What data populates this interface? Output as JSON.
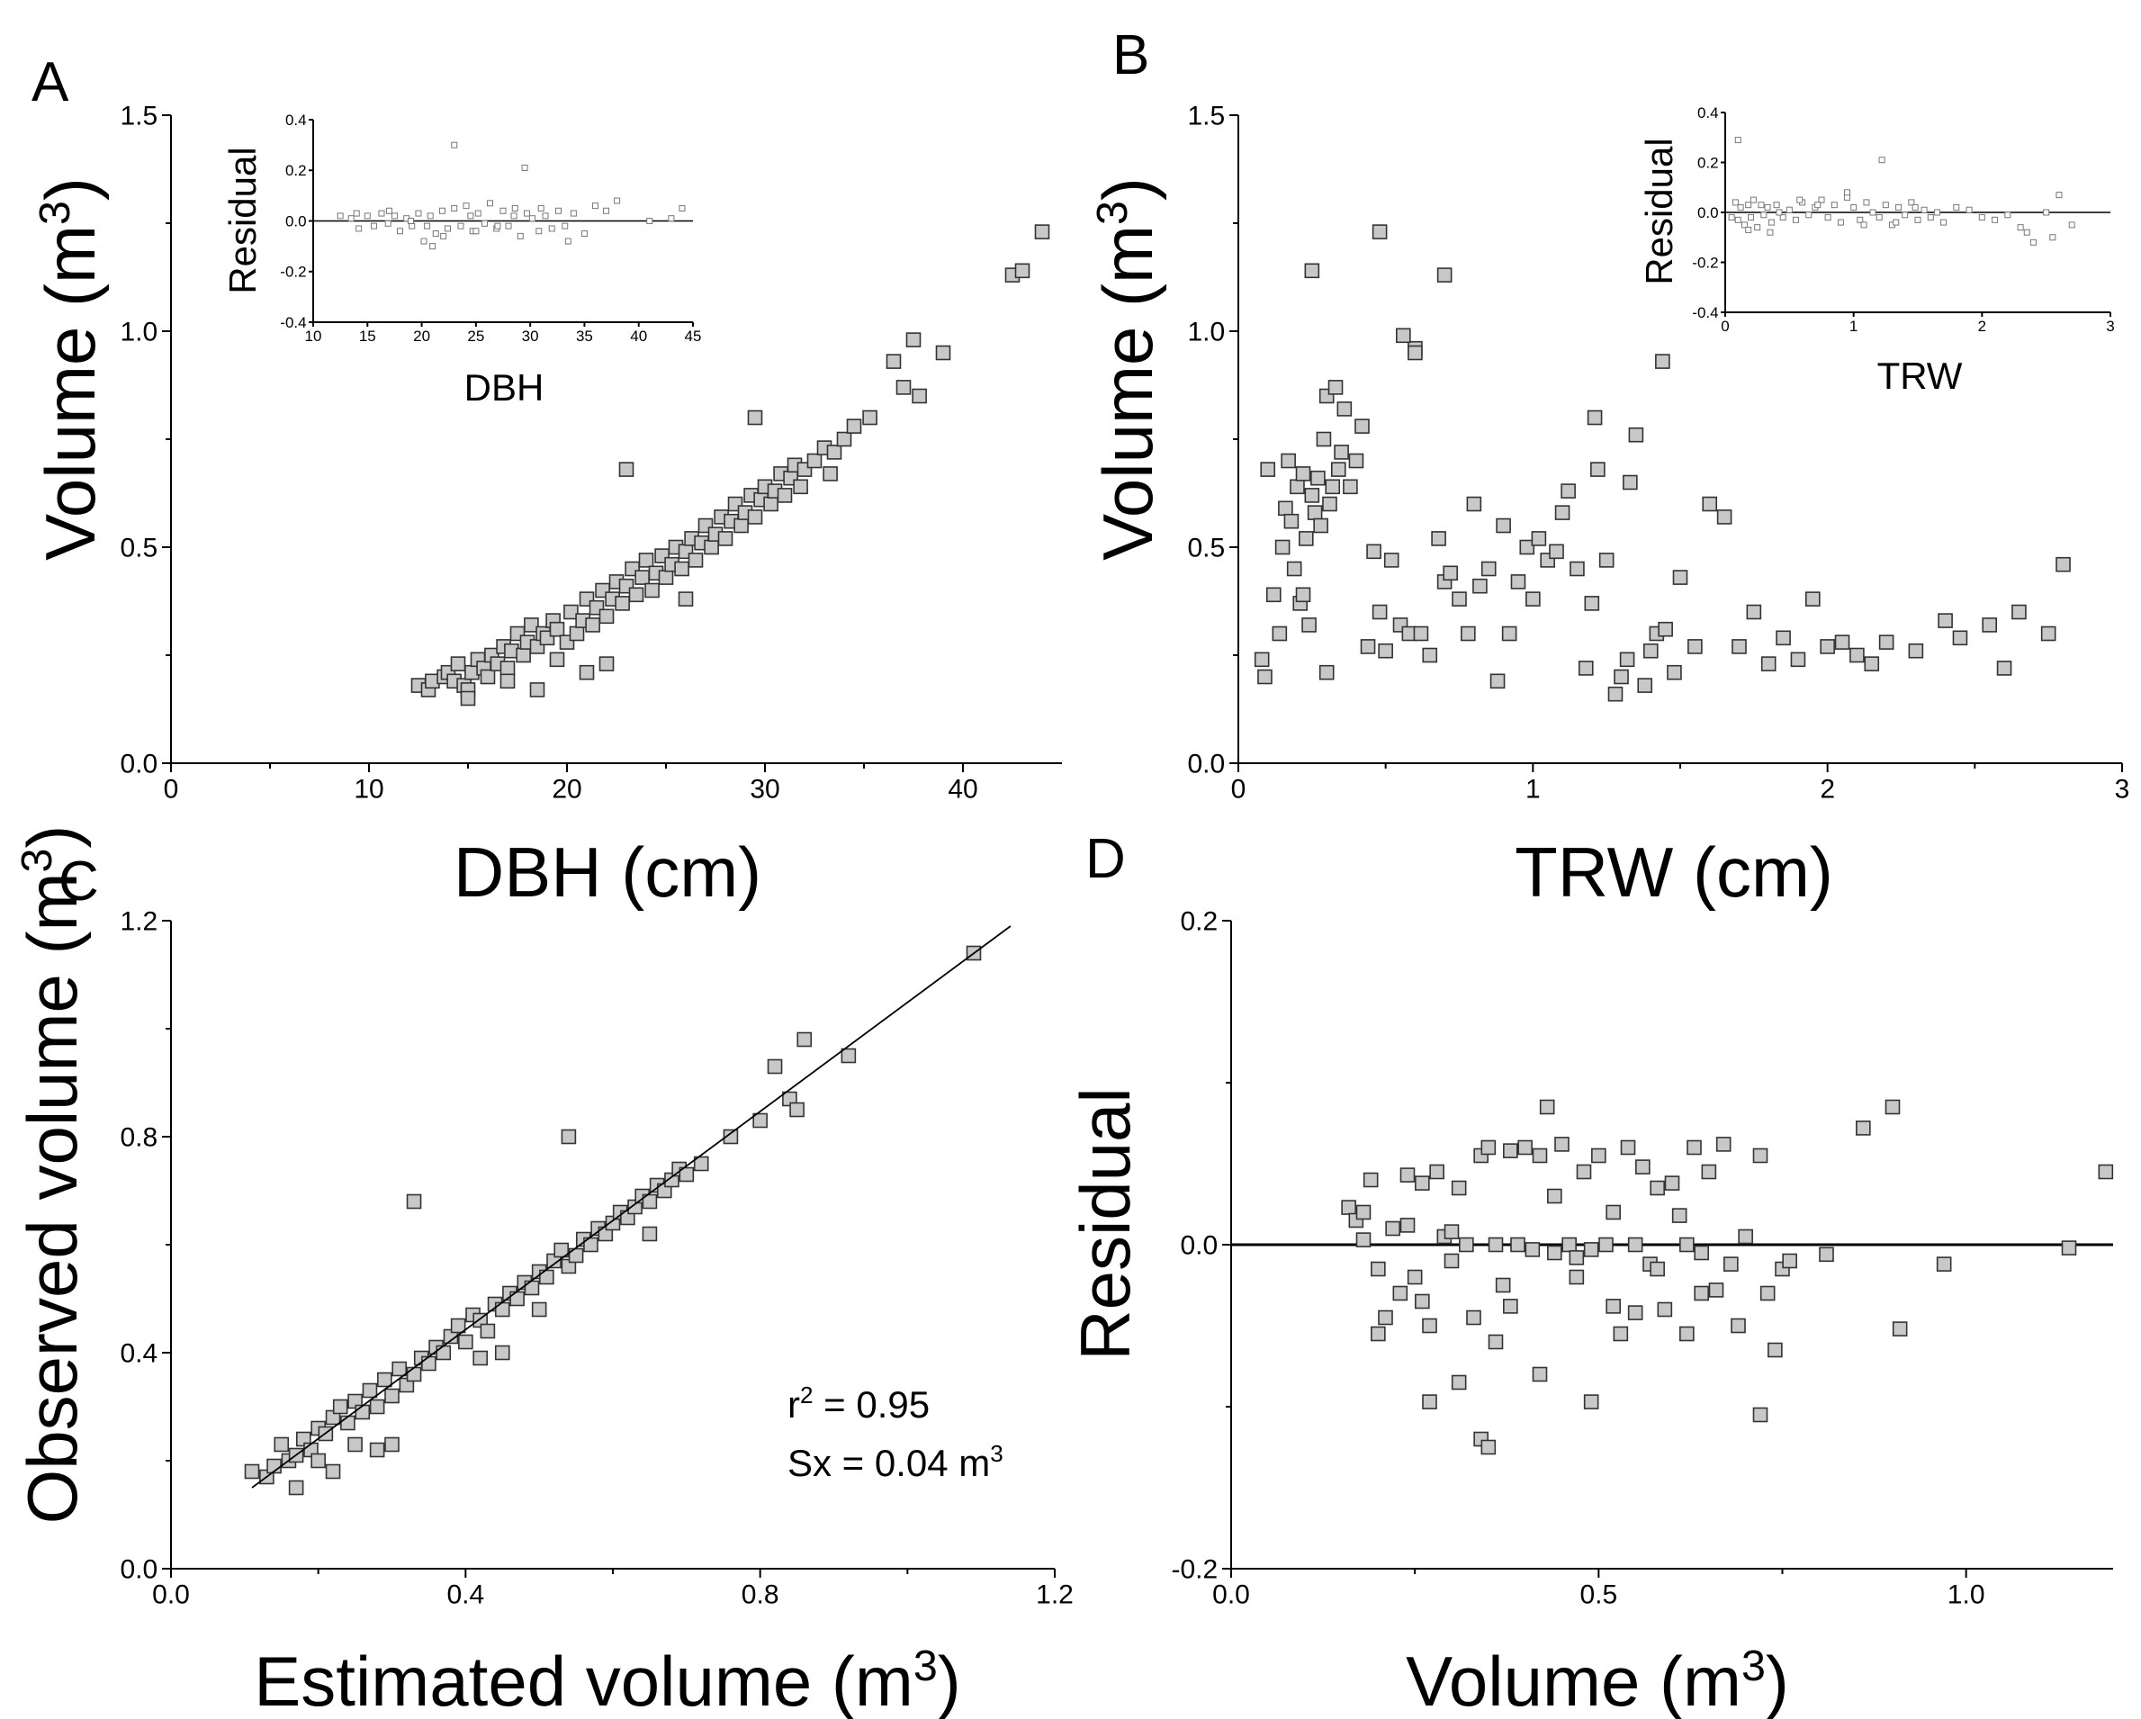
{
  "figure": {
    "panels": [
      {
        "letter": "A",
        "xlabel": "DBH (cm)",
        "ylabel": "Volume (m",
        "ylabel_sup": "3",
        "ylabel_end": ")"
      },
      {
        "letter": "B",
        "xlabel": "TRW (cm)",
        "ylabel": "Volume (m",
        "ylabel_sup": "3",
        "ylabel_end": ")"
      },
      {
        "letter": "C",
        "xlabel": "Estimated volume (m",
        "xlabel_sup": "3",
        "xlabel_end": ")",
        "ylabel": "Observed volume (m",
        "ylabel_sup": "3",
        "ylabel_end": ")"
      },
      {
        "letter": "D",
        "xlabel": "Volume (m",
        "xlabel_sup": "3",
        "xlabel_end": ")",
        "ylabel": "Residual"
      }
    ],
    "insets": [
      {
        "panel": "A",
        "xlabel": "DBH",
        "ylabel": "Residual"
      },
      {
        "panel": "B",
        "xlabel": "TRW",
        "ylabel": "Residual"
      }
    ],
    "annotations": {
      "r2_prefix": "r",
      "r2_sup": "2",
      "r2_suffix": " = 0.95",
      "sx_prefix": "Sx = 0.04 m",
      "sx_sup": "3"
    }
  },
  "chart_data": [
    {
      "id": "A",
      "type": "scatter",
      "title": "",
      "xlabel": "DBH (cm)",
      "ylabel": "Volume (m3)",
      "xlim": [
        0,
        45
      ],
      "ylim": [
        0,
        1.5
      ],
      "xticks": [
        "0",
        "10",
        "20",
        "30",
        "40"
      ],
      "yticks": [
        "0.0",
        "0.5",
        "1.0",
        "1.5"
      ],
      "xtick_values": [
        0,
        10,
        20,
        30,
        40
      ],
      "ytick_values": [
        0,
        0.5,
        1.0,
        1.5
      ],
      "point_color": "#c8c8c8",
      "edge_color": "#333333",
      "x": [
        12.5,
        13.0,
        13.2,
        13.8,
        14.0,
        14.3,
        14.5,
        14.8,
        15.0,
        15.2,
        15.5,
        15.8,
        16.0,
        16.2,
        16.5,
        16.8,
        17.0,
        17.2,
        17.5,
        17.8,
        18.0,
        18.2,
        18.5,
        18.8,
        19.0,
        19.3,
        19.5,
        20.0,
        20.2,
        20.5,
        20.8,
        21.0,
        21.3,
        21.5,
        21.8,
        22.0,
        22.3,
        22.5,
        22.8,
        23.0,
        23.3,
        23.5,
        23.8,
        24.0,
        24.3,
        24.5,
        24.8,
        25.0,
        25.3,
        25.5,
        25.8,
        26.0,
        26.3,
        26.5,
        26.8,
        27.0,
        27.3,
        27.5,
        27.8,
        28.0,
        28.3,
        28.5,
        28.8,
        29.0,
        29.3,
        29.5,
        29.8,
        30.0,
        30.3,
        30.5,
        30.8,
        31.0,
        31.3,
        31.5,
        31.8,
        32.0,
        32.5,
        33.0,
        33.3,
        33.5,
        34.0,
        34.5,
        35.3,
        36.5,
        37.0,
        37.5,
        37.8,
        39.0,
        42.5,
        43.0,
        44.0,
        23.0,
        29.5,
        19.5,
        22.0,
        21.0,
        26.0,
        18.5,
        17.0,
        15.0
      ],
      "y": [
        0.18,
        0.17,
        0.19,
        0.2,
        0.21,
        0.19,
        0.23,
        0.18,
        0.17,
        0.21,
        0.24,
        0.22,
        0.2,
        0.25,
        0.23,
        0.27,
        0.22,
        0.26,
        0.3,
        0.25,
        0.28,
        0.32,
        0.27,
        0.3,
        0.29,
        0.33,
        0.31,
        0.28,
        0.35,
        0.3,
        0.33,
        0.38,
        0.32,
        0.36,
        0.4,
        0.34,
        0.38,
        0.42,
        0.37,
        0.41,
        0.45,
        0.39,
        0.43,
        0.47,
        0.4,
        0.44,
        0.48,
        0.43,
        0.46,
        0.5,
        0.45,
        0.49,
        0.52,
        0.47,
        0.51,
        0.55,
        0.5,
        0.53,
        0.57,
        0.52,
        0.56,
        0.6,
        0.55,
        0.58,
        0.62,
        0.57,
        0.61,
        0.64,
        0.6,
        0.63,
        0.67,
        0.62,
        0.66,
        0.69,
        0.64,
        0.68,
        0.7,
        0.73,
        0.67,
        0.72,
        0.75,
        0.78,
        0.8,
        0.93,
        0.87,
        0.98,
        0.85,
        0.95,
        1.13,
        1.14,
        1.23,
        0.68,
        0.8,
        0.24,
        0.23,
        0.21,
        0.38,
        0.17,
        0.19,
        0.15
      ]
    },
    {
      "id": "A-inset",
      "type": "scatter",
      "xlabel": "DBH",
      "ylabel": "Residual",
      "xlim": [
        10,
        45
      ],
      "ylim": [
        -0.4,
        0.4
      ],
      "xticks": [
        "10",
        "15",
        "20",
        "25",
        "30",
        "35",
        "40",
        "45"
      ],
      "yticks": [
        "-0.4",
        "-0.2",
        "0.0",
        "0.2",
        "0.4"
      ],
      "xtick_values": [
        10,
        15,
        20,
        25,
        30,
        35,
        40,
        45
      ],
      "ytick_values": [
        -0.4,
        -0.2,
        0.0,
        0.2,
        0.4
      ],
      "reference_line": 0,
      "x": [
        12.5,
        13.5,
        14.2,
        15.0,
        15.6,
        16.3,
        16.9,
        17.5,
        18.0,
        18.6,
        19.1,
        19.7,
        20.2,
        20.8,
        21.3,
        21.9,
        22.4,
        23.0,
        23.6,
        24.1,
        24.7,
        25.2,
        25.8,
        26.3,
        26.9,
        27.5,
        28.0,
        28.6,
        29.1,
        29.7,
        30.2,
        30.8,
        31.4,
        32.0,
        32.6,
        33.2,
        34.0,
        35.0,
        36.0,
        37.0,
        38.0,
        41.0,
        43.0,
        44.0,
        23.0,
        29.5,
        14.0,
        17.0,
        20.5,
        22.0,
        24.5,
        27.0,
        31.0,
        33.5,
        19.0,
        25.0,
        28.5,
        21.0
      ],
      "y": [
        0.02,
        0.01,
        -0.03,
        0.02,
        -0.02,
        0.03,
        -0.01,
        0.02,
        -0.04,
        0.01,
        -0.02,
        0.03,
        -0.08,
        0.02,
        -0.05,
        0.04,
        -0.03,
        0.05,
        -0.02,
        0.06,
        -0.04,
        0.03,
        -0.01,
        0.07,
        -0.03,
        0.04,
        -0.02,
        0.05,
        -0.06,
        0.03,
        0.01,
        -0.04,
        0.02,
        -0.03,
        0.04,
        -0.02,
        0.03,
        -0.05,
        0.06,
        0.04,
        0.08,
        0.0,
        0.01,
        0.05,
        0.3,
        0.21,
        0.03,
        0.04,
        -0.02,
        -0.06,
        0.02,
        -0.02,
        0.05,
        -0.08,
        0.0,
        -0.04,
        0.02,
        -0.1
      ]
    },
    {
      "id": "B",
      "type": "scatter",
      "xlabel": "TRW (cm)",
      "ylabel": "Volume (m3)",
      "xlim": [
        0,
        3
      ],
      "ylim": [
        0,
        1.5
      ],
      "xticks": [
        "0",
        "1",
        "2",
        "3"
      ],
      "yticks": [
        "0.0",
        "0.5",
        "1.0",
        "1.5"
      ],
      "xtick_values": [
        0,
        1,
        2,
        3
      ],
      "ytick_values": [
        0,
        0.5,
        1.0,
        1.5
      ],
      "point_color": "#c8c8c8",
      "edge_color": "#333333",
      "x": [
        0.08,
        0.09,
        0.1,
        0.12,
        0.14,
        0.15,
        0.16,
        0.17,
        0.18,
        0.19,
        0.2,
        0.21,
        0.22,
        0.23,
        0.24,
        0.25,
        0.26,
        0.27,
        0.28,
        0.29,
        0.3,
        0.31,
        0.32,
        0.33,
        0.34,
        0.35,
        0.36,
        0.38,
        0.4,
        0.42,
        0.44,
        0.46,
        0.48,
        0.5,
        0.52,
        0.55,
        0.58,
        0.6,
        0.62,
        0.65,
        0.68,
        0.7,
        0.72,
        0.75,
        0.78,
        0.8,
        0.82,
        0.85,
        0.88,
        0.9,
        0.92,
        0.95,
        0.98,
        1.0,
        1.02,
        1.05,
        1.08,
        1.1,
        1.12,
        1.15,
        1.18,
        1.2,
        1.22,
        1.25,
        1.28,
        1.3,
        1.32,
        1.35,
        1.38,
        1.4,
        1.42,
        1.45,
        1.48,
        1.5,
        1.55,
        1.6,
        1.65,
        1.7,
        1.75,
        1.8,
        1.85,
        1.9,
        1.95,
        2.0,
        2.05,
        2.1,
        2.15,
        2.2,
        2.3,
        2.4,
        2.45,
        2.55,
        2.6,
        2.65,
        2.75,
        2.8,
        0.25,
        0.48,
        0.7,
        0.56,
        0.6,
        1.44,
        1.21,
        1.33,
        0.3,
        0.22
      ],
      "y": [
        0.24,
        0.2,
        0.68,
        0.39,
        0.3,
        0.5,
        0.59,
        0.7,
        0.56,
        0.45,
        0.64,
        0.37,
        0.67,
        0.52,
        0.32,
        0.62,
        0.58,
        0.66,
        0.55,
        0.75,
        0.85,
        0.6,
        0.64,
        0.87,
        0.68,
        0.72,
        0.82,
        0.64,
        0.7,
        0.78,
        0.27,
        0.49,
        0.35,
        0.26,
        0.47,
        0.32,
        0.3,
        0.96,
        0.3,
        0.25,
        0.52,
        0.42,
        0.44,
        0.38,
        0.3,
        0.6,
        0.41,
        0.45,
        0.19,
        0.55,
        0.3,
        0.42,
        0.5,
        0.38,
        0.52,
        0.47,
        0.49,
        0.58,
        0.63,
        0.45,
        0.22,
        0.37,
        0.68,
        0.47,
        0.16,
        0.2,
        0.24,
        0.76,
        0.18,
        0.26,
        0.3,
        0.31,
        0.21,
        0.43,
        0.27,
        0.6,
        0.57,
        0.27,
        0.35,
        0.23,
        0.29,
        0.24,
        0.38,
        0.27,
        0.28,
        0.25,
        0.23,
        0.28,
        0.26,
        0.33,
        0.29,
        0.32,
        0.22,
        0.35,
        0.3,
        0.46,
        1.14,
        1.23,
        1.13,
        0.99,
        0.95,
        0.93,
        0.8,
        0.65,
        0.21,
        0.39
      ]
    },
    {
      "id": "B-inset",
      "type": "scatter",
      "xlabel": "TRW",
      "ylabel": "Residual",
      "xlim": [
        0,
        3
      ],
      "ylim": [
        -0.4,
        0.4
      ],
      "xticks": [
        "0",
        "1",
        "2",
        "3"
      ],
      "yticks": [
        "-0.4",
        "-0.2",
        "0.0",
        "0.2",
        "0.4"
      ],
      "xtick_values": [
        0,
        1,
        2,
        3
      ],
      "ytick_values": [
        -0.4,
        -0.2,
        0.0,
        0.2,
        0.4
      ],
      "reference_line": 0,
      "x": [
        0.05,
        0.08,
        0.1,
        0.12,
        0.15,
        0.18,
        0.2,
        0.22,
        0.25,
        0.28,
        0.3,
        0.33,
        0.36,
        0.4,
        0.45,
        0.5,
        0.55,
        0.6,
        0.65,
        0.7,
        0.75,
        0.8,
        0.85,
        0.9,
        0.95,
        1.0,
        1.05,
        1.1,
        1.15,
        1.2,
        1.25,
        1.3,
        1.35,
        1.4,
        1.45,
        1.5,
        1.55,
        1.6,
        1.65,
        1.7,
        1.8,
        1.9,
        2.0,
        2.1,
        2.2,
        2.3,
        2.4,
        2.5,
        2.55,
        2.6,
        2.7,
        0.1,
        1.22,
        0.35,
        0.58,
        0.95,
        1.33,
        0.18,
        0.42,
        0.72,
        1.08,
        1.48,
        2.35
      ],
      "y": [
        -0.02,
        0.04,
        -0.03,
        0.02,
        -0.05,
        0.03,
        -0.02,
        0.05,
        -0.06,
        0.03,
        -0.01,
        0.02,
        -0.04,
        0.03,
        -0.02,
        0.01,
        -0.03,
        0.04,
        -0.01,
        0.02,
        0.05,
        -0.02,
        0.03,
        -0.04,
        0.06,
        0.02,
        -0.03,
        0.04,
        0.0,
        -0.02,
        0.03,
        -0.05,
        0.02,
        -0.01,
        0.04,
        -0.03,
        0.01,
        -0.02,
        0.0,
        -0.04,
        0.02,
        0.01,
        -0.02,
        -0.03,
        -0.01,
        -0.06,
        -0.12,
        0.0,
        -0.1,
        0.07,
        -0.05,
        0.29,
        0.21,
        -0.08,
        0.05,
        0.08,
        -0.04,
        -0.07,
        0.0,
        0.03,
        -0.05,
        0.02,
        -0.08
      ]
    },
    {
      "id": "C",
      "type": "scatter",
      "xlabel": "Estimated volume (m3)",
      "ylabel": "Observed volume (m3)",
      "xlim": [
        0,
        1.2
      ],
      "ylim": [
        0,
        1.2
      ],
      "xticks": [
        "0.0",
        "0.4",
        "0.8",
        "1.2"
      ],
      "yticks": [
        "0.0",
        "0.4",
        "0.8",
        "1.2"
      ],
      "xtick_values": [
        0,
        0.4,
        0.8,
        1.2
      ],
      "ytick_values": [
        0,
        0.4,
        0.8,
        1.2
      ],
      "fit_line": {
        "x": [
          0.11,
          1.14
        ],
        "y": [
          0.15,
          1.19
        ]
      },
      "r2": 0.95,
      "sx": 0.04,
      "point_color": "#c8c8c8",
      "edge_color": "#333333",
      "x": [
        0.11,
        0.13,
        0.14,
        0.15,
        0.16,
        0.17,
        0.18,
        0.19,
        0.2,
        0.21,
        0.22,
        0.23,
        0.24,
        0.25,
        0.26,
        0.27,
        0.28,
        0.29,
        0.3,
        0.31,
        0.32,
        0.33,
        0.34,
        0.35,
        0.36,
        0.37,
        0.38,
        0.39,
        0.4,
        0.41,
        0.42,
        0.43,
        0.44,
        0.45,
        0.46,
        0.47,
        0.48,
        0.49,
        0.5,
        0.51,
        0.52,
        0.53,
        0.54,
        0.55,
        0.56,
        0.57,
        0.58,
        0.59,
        0.6,
        0.61,
        0.62,
        0.63,
        0.64,
        0.65,
        0.66,
        0.67,
        0.68,
        0.69,
        0.7,
        0.72,
        0.76,
        0.8,
        0.82,
        0.84,
        0.85,
        0.86,
        0.92,
        1.09,
        0.33,
        0.54,
        0.22,
        0.28,
        0.3,
        0.45,
        0.17,
        0.2,
        0.25,
        0.42,
        0.5,
        0.65
      ],
      "y": [
        0.18,
        0.17,
        0.19,
        0.23,
        0.2,
        0.21,
        0.24,
        0.22,
        0.26,
        0.25,
        0.28,
        0.3,
        0.27,
        0.31,
        0.29,
        0.33,
        0.3,
        0.35,
        0.32,
        0.37,
        0.34,
        0.36,
        0.39,
        0.38,
        0.41,
        0.4,
        0.43,
        0.45,
        0.42,
        0.47,
        0.46,
        0.44,
        0.49,
        0.48,
        0.51,
        0.5,
        0.53,
        0.52,
        0.55,
        0.54,
        0.57,
        0.59,
        0.56,
        0.58,
        0.61,
        0.6,
        0.63,
        0.62,
        0.64,
        0.66,
        0.65,
        0.67,
        0.69,
        0.68,
        0.71,
        0.7,
        0.72,
        0.74,
        0.73,
        0.75,
        0.8,
        0.83,
        0.93,
        0.87,
        0.85,
        0.98,
        0.95,
        1.14,
        0.68,
        0.8,
        0.18,
        0.22,
        0.23,
        0.4,
        0.15,
        0.2,
        0.23,
        0.39,
        0.48,
        0.62
      ]
    },
    {
      "id": "D",
      "type": "scatter",
      "xlabel": "Volume (m3)",
      "ylabel": "Residual",
      "xlim": [
        0,
        1.2
      ],
      "ylim": [
        -0.2,
        0.2
      ],
      "xticks": [
        "0.0",
        "0.5",
        "1.0"
      ],
      "yticks": [
        "-0.2",
        "0.0",
        "0.2"
      ],
      "xtick_values": [
        0,
        0.5,
        1.0
      ],
      "ytick_values": [
        -0.2,
        0.0,
        0.2
      ],
      "reference_line": 0,
      "point_color": "#c8c8c8",
      "edge_color": "#333333",
      "x": [
        0.16,
        0.17,
        0.18,
        0.19,
        0.2,
        0.21,
        0.22,
        0.23,
        0.24,
        0.25,
        0.26,
        0.27,
        0.28,
        0.29,
        0.3,
        0.31,
        0.32,
        0.33,
        0.34,
        0.35,
        0.36,
        0.37,
        0.38,
        0.39,
        0.4,
        0.41,
        0.42,
        0.43,
        0.44,
        0.45,
        0.46,
        0.47,
        0.48,
        0.49,
        0.5,
        0.51,
        0.52,
        0.53,
        0.54,
        0.55,
        0.56,
        0.57,
        0.58,
        0.59,
        0.6,
        0.61,
        0.62,
        0.63,
        0.64,
        0.65,
        0.66,
        0.67,
        0.68,
        0.69,
        0.7,
        0.72,
        0.73,
        0.74,
        0.75,
        0.76,
        0.81,
        0.86,
        0.9,
        0.91,
        0.97,
        1.14,
        1.19,
        0.34,
        0.35,
        0.49,
        0.72,
        0.27,
        0.31,
        0.42,
        0.2,
        0.26,
        0.38,
        0.47,
        0.55,
        0.62,
        0.18,
        0.24,
        0.3,
        0.36,
        0.44,
        0.52,
        0.58,
        0.64
      ],
      "y": [
        0.023,
        0.015,
        0.02,
        0.04,
        -0.015,
        -0.045,
        0.01,
        -0.03,
        0.043,
        -0.02,
        0.038,
        -0.05,
        0.045,
        0.005,
        -0.01,
        0.035,
        0.0,
        -0.045,
        0.055,
        0.06,
        0.0,
        -0.025,
        0.058,
        0.0,
        0.06,
        -0.003,
        0.055,
        0.085,
        -0.005,
        0.062,
        0.0,
        -0.008,
        0.045,
        -0.003,
        0.055,
        0.0,
        -0.038,
        -0.055,
        0.06,
        0.0,
        0.048,
        -0.012,
        0.035,
        -0.04,
        0.038,
        0.018,
        0.0,
        0.06,
        -0.005,
        0.045,
        -0.028,
        0.062,
        -0.012,
        -0.05,
        0.005,
        0.055,
        -0.03,
        -0.065,
        -0.015,
        -0.01,
        -0.006,
        0.072,
        0.085,
        -0.052,
        -0.012,
        -0.002,
        0.045,
        -0.12,
        -0.125,
        -0.097,
        -0.105,
        -0.097,
        -0.085,
        -0.08,
        -0.055,
        -0.035,
        -0.038,
        -0.02,
        -0.042,
        -0.055,
        0.003,
        0.012,
        0.008,
        -0.06,
        0.03,
        0.02,
        -0.015,
        -0.03
      ]
    }
  ]
}
